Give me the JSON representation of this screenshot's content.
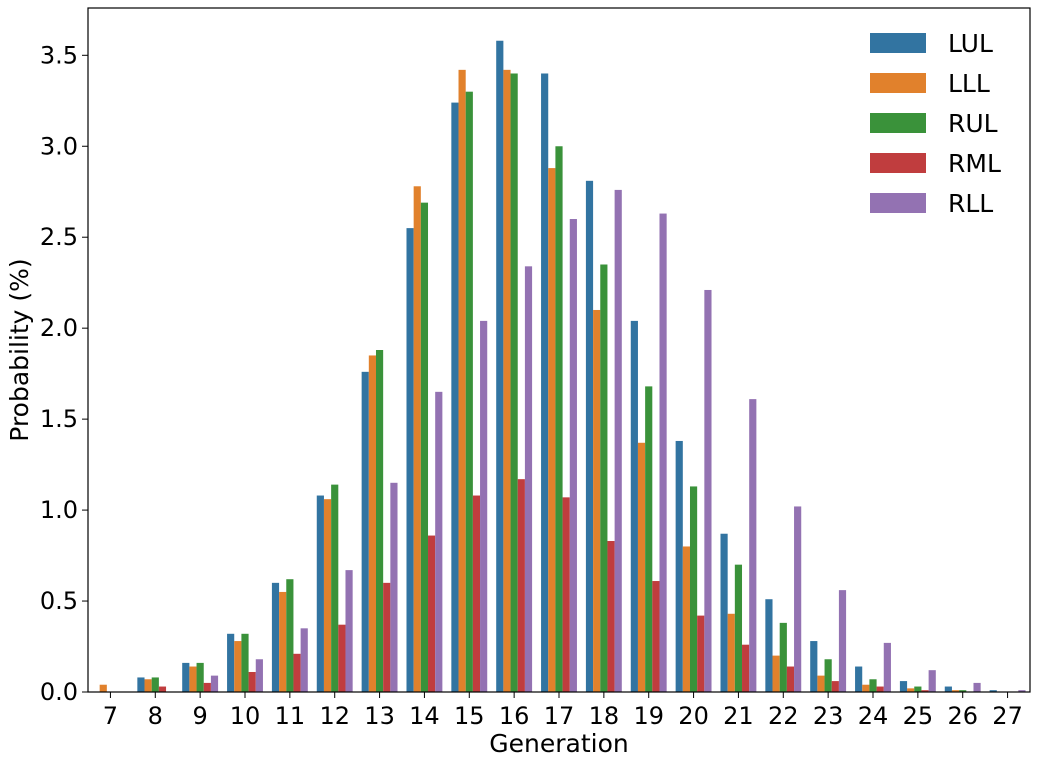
{
  "chart_data": {
    "type": "bar",
    "xlabel": "Generation",
    "ylabel": "Probability (%)",
    "ylim": [
      0,
      3.76
    ],
    "yticks": [
      "0.0",
      "0.5",
      "1.0",
      "1.5",
      "2.0",
      "2.5",
      "3.0",
      "3.5"
    ],
    "categories": [
      "7",
      "8",
      "9",
      "10",
      "11",
      "12",
      "13",
      "14",
      "15",
      "16",
      "17",
      "18",
      "19",
      "20",
      "21",
      "22",
      "23",
      "24",
      "25",
      "26",
      "27"
    ],
    "legend_position": "top-right",
    "grid": false,
    "series": [
      {
        "name": "LUL",
        "color": "#3274a1",
        "values": [
          0.0,
          0.08,
          0.16,
          0.32,
          0.6,
          1.08,
          1.76,
          2.55,
          3.24,
          3.58,
          3.4,
          2.81,
          2.04,
          1.38,
          0.87,
          0.51,
          0.28,
          0.14,
          0.06,
          0.03,
          0.01
        ]
      },
      {
        "name": "LLL",
        "color": "#e1812c",
        "values": [
          0.04,
          0.07,
          0.14,
          0.28,
          0.55,
          1.06,
          1.85,
          2.78,
          3.42,
          3.42,
          2.88,
          2.1,
          1.37,
          0.8,
          0.43,
          0.2,
          0.09,
          0.04,
          0.02,
          0.01,
          0.0
        ]
      },
      {
        "name": "RUL",
        "color": "#3a923a",
        "values": [
          0.0,
          0.08,
          0.16,
          0.32,
          0.62,
          1.14,
          1.88,
          2.69,
          3.3,
          3.4,
          3.0,
          2.35,
          1.68,
          1.13,
          0.7,
          0.38,
          0.18,
          0.07,
          0.03,
          0.01,
          0.0
        ]
      },
      {
        "name": "RML",
        "color": "#c03d3e",
        "values": [
          0.0,
          0.03,
          0.05,
          0.11,
          0.21,
          0.37,
          0.6,
          0.86,
          1.08,
          1.17,
          1.07,
          0.83,
          0.61,
          0.42,
          0.26,
          0.14,
          0.06,
          0.03,
          0.01,
          0.0,
          0.0
        ]
      },
      {
        "name": "RLL",
        "color": "#9372b2",
        "values": [
          0.0,
          0.0,
          0.09,
          0.18,
          0.35,
          0.67,
          1.15,
          1.65,
          2.04,
          2.34,
          2.6,
          2.76,
          2.63,
          2.21,
          1.61,
          1.02,
          0.56,
          0.27,
          0.12,
          0.05,
          0.01
        ]
      }
    ]
  }
}
